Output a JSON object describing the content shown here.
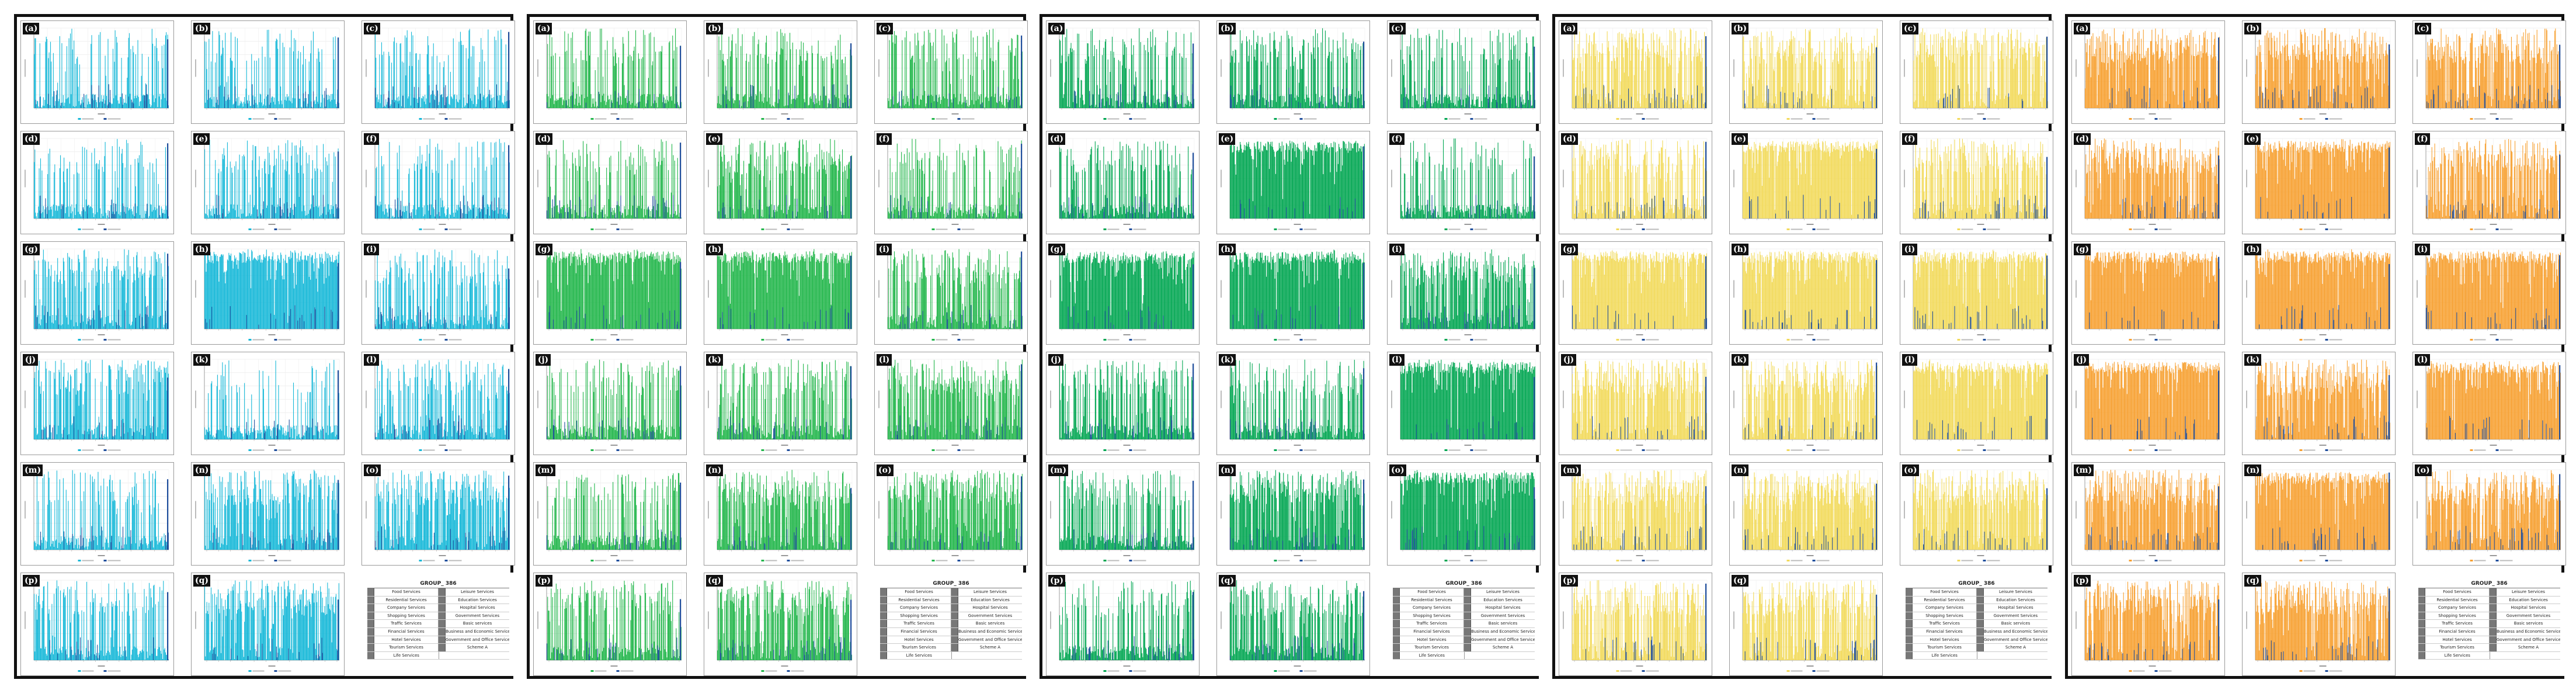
{
  "figure": {
    "panels": [
      {
        "id": "panel-cyan",
        "color": "#16b8d8",
        "dark": "#1a7fa8"
      },
      {
        "id": "panel-lightgreen",
        "color": "#21b64a",
        "dark": "#1e8a3c"
      },
      {
        "id": "panel-darkgreen",
        "color": "#00a651",
        "dark": "#00794a"
      },
      {
        "id": "panel-yellow",
        "color": "#f2da5a",
        "dark": "#cdb64a"
      },
      {
        "id": "panel-orange",
        "color": "#f7a030",
        "dark": "#d0801c"
      }
    ],
    "subplot_labels": [
      "(a)",
      "(b)",
      "(c)",
      "(d)",
      "(e)",
      "(f)",
      "(g)",
      "(h)",
      "(i)",
      "(j)",
      "(k)",
      "(l)",
      "(m)",
      "(n)",
      "(o)",
      "(p)",
      "(q)"
    ],
    "overlay_color": "#1f4e9c"
  },
  "legend": {
    "title": "GROUP_ 386",
    "left_items": [
      "Food Services",
      "Residential Services",
      "Company Services",
      "Shopping Services",
      "Traffic Services",
      "Financial Services",
      "Hotel Services",
      "Tourism Services",
      "Life Services"
    ],
    "right_items": [
      "Leisure Services",
      "Education Services",
      "Hospital Services",
      "Government Services",
      "Basic services",
      "Business and Economic Services",
      "Government and Office Services",
      "Scheme A",
      ""
    ]
  },
  "chart_data": {
    "type": "bar",
    "title": "",
    "description": "5 panels x 17 small multiple bar plots of dense service-count distributions; per-subplot density level (0-1) and overlay series density are approximate visual estimates.",
    "subplot_density": {
      "panel-cyan": [
        0.35,
        0.35,
        0.35,
        0.35,
        0.5,
        0.35,
        0.65,
        0.95,
        0.55,
        0.6,
        0.25,
        0.55,
        0.4,
        0.7,
        0.7,
        0.6,
        0.75
      ],
      "panel-lightgreen": [
        0.45,
        0.45,
        0.45,
        0.4,
        0.7,
        0.45,
        0.95,
        0.95,
        0.6,
        0.5,
        0.45,
        0.75,
        0.45,
        0.75,
        0.8,
        0.5,
        0.7
      ],
      "panel-darkgreen": [
        0.45,
        0.55,
        0.4,
        0.45,
        0.95,
        0.35,
        0.98,
        0.95,
        0.7,
        0.5,
        0.4,
        0.95,
        0.5,
        0.9,
        0.95,
        0.4,
        0.6
      ],
      "panel-yellow": [
        0.75,
        0.75,
        0.7,
        0.6,
        0.95,
        0.7,
        0.95,
        0.95,
        0.95,
        0.85,
        0.75,
        0.95,
        0.8,
        0.9,
        0.85,
        0.7,
        0.75
      ],
      "panel-orange": [
        0.9,
        0.85,
        0.85,
        0.85,
        0.98,
        0.8,
        0.98,
        0.98,
        0.98,
        0.95,
        0.9,
        0.95,
        0.9,
        0.95,
        0.9,
        0.85,
        0.9
      ]
    },
    "overlay_density": 0.12
  }
}
